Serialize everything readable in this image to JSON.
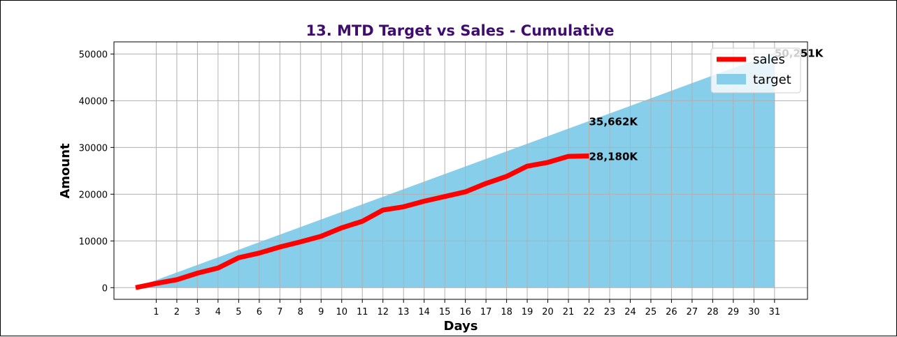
{
  "chart_data": {
    "type": "line",
    "title": "13. MTD Target vs Sales - Cumulative",
    "xlabel": "Days",
    "ylabel": "Amount",
    "xlim": [
      -1.05,
      32.6
    ],
    "ylim": [
      -2500,
      52600
    ],
    "x_ticks": [
      1,
      2,
      3,
      4,
      5,
      6,
      7,
      8,
      9,
      10,
      11,
      12,
      13,
      14,
      15,
      16,
      17,
      18,
      19,
      20,
      21,
      22,
      23,
      24,
      25,
      26,
      27,
      28,
      29,
      30,
      31
    ],
    "y_ticks": [
      0,
      10000,
      20000,
      30000,
      40000,
      50000
    ],
    "y_tick_labels": [
      "0",
      "10000",
      "20000",
      "30000",
      "40000",
      "50000"
    ],
    "grid": true,
    "legend_position": "top-right",
    "series": [
      {
        "name": "sales",
        "kind": "line",
        "color": "#ff0000",
        "x": [
          0,
          1,
          2,
          3,
          4,
          5,
          6,
          7,
          8,
          9,
          10,
          11,
          12,
          13,
          14,
          15,
          16,
          17,
          18,
          19,
          20,
          21,
          22
        ],
        "values": [
          0,
          900,
          1700,
          3100,
          4200,
          6400,
          7400,
          8700,
          9800,
          11000,
          12800,
          14200,
          16600,
          17300,
          18500,
          19500,
          20500,
          22300,
          23800,
          26000,
          26800,
          28100,
          28180
        ]
      },
      {
        "name": "target",
        "kind": "area",
        "color": "#87ceeb",
        "x": [
          0,
          31
        ],
        "values": [
          0,
          50251
        ]
      }
    ],
    "annotations": [
      {
        "text": "35,662K",
        "x": 22,
        "y": 35662
      },
      {
        "text": "28,180K",
        "x": 22,
        "y": 28180
      },
      {
        "text": "50,251K",
        "x": 31,
        "y": 50251
      }
    ]
  }
}
